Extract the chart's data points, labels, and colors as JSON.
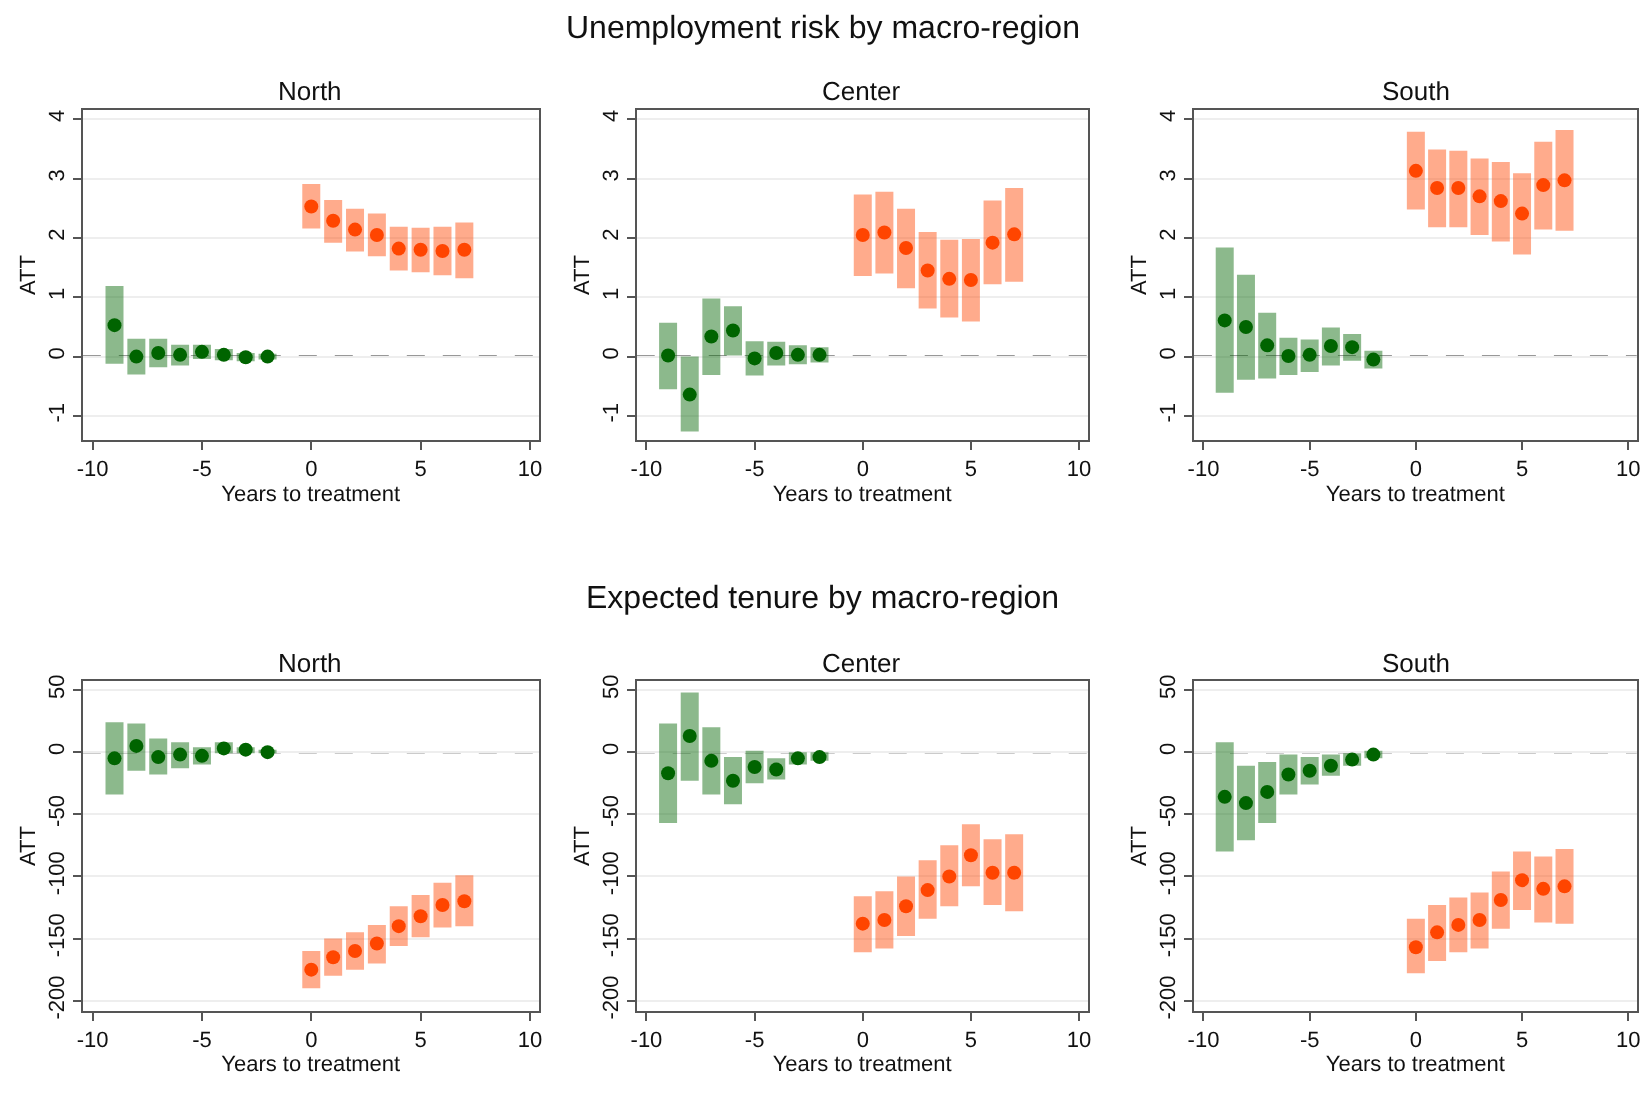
{
  "chart_data": [
    {
      "type": "scatter",
      "title": "North",
      "annotations": [
        "Unemployment risk by macro-region"
      ],
      "xlabel": "Years to treatment",
      "ylabel": "ATT",
      "xlim": [
        -10.45,
        10.4
      ],
      "xticks": [
        -10,
        -5,
        0,
        5,
        10
      ],
      "ylim": [
        -1.4,
        4.15
      ],
      "yticks": [
        -1,
        0,
        1,
        2,
        3,
        4
      ],
      "grid": "y",
      "marker": "circle",
      "ref_lines": [
        {
          "axis": "y",
          "value": 0,
          "line_style": "dashed",
          "color": "#333333"
        }
      ],
      "series": [
        {
          "color": "#006400",
          "x": [
            -9,
            -8,
            -7,
            -6,
            -5,
            -4,
            -3,
            -2
          ],
          "values": [
            0.53,
            0,
            0.06,
            0.03,
            0.08,
            0.03,
            -0.01,
            0
          ],
          "errors": [
            [
              -0.12,
              1.19
            ],
            [
              -0.3,
              0.3
            ],
            [
              -0.18,
              0.3
            ],
            [
              -0.15,
              0.2
            ],
            [
              -0.04,
              0.2
            ],
            [
              -0.06,
              0.13
            ],
            [
              -0.08,
              0.06
            ],
            [
              -0.05,
              0.05
            ]
          ]
        },
        {
          "color": "#ff4500",
          "x": [
            0,
            1,
            2,
            3,
            4,
            5,
            6,
            7
          ],
          "values": [
            2.53,
            2.29,
            2.14,
            2.05,
            1.82,
            1.8,
            1.78,
            1.8
          ],
          "errors": [
            [
              2.16,
              2.91
            ],
            [
              1.92,
              2.64
            ],
            [
              1.77,
              2.49
            ],
            [
              1.69,
              2.41
            ],
            [
              1.45,
              2.19
            ],
            [
              1.42,
              2.17
            ],
            [
              1.37,
              2.19
            ],
            [
              1.32,
              2.26
            ]
          ]
        }
      ]
    },
    {
      "type": "scatter",
      "title": "Center",
      "xlabel": "Years to treatment",
      "ylabel": "ATT",
      "xlim": [
        -10.45,
        10.4
      ],
      "xticks": [
        -10,
        -5,
        0,
        5,
        10
      ],
      "ylim": [
        -1.4,
        4.15
      ],
      "yticks": [
        -1,
        0,
        1,
        2,
        3,
        4
      ],
      "grid": "y",
      "marker": "circle",
      "ref_lines": [
        {
          "axis": "y",
          "value": 0,
          "line_style": "dashed",
          "color": "#333333"
        }
      ],
      "series": [
        {
          "color": "#006400",
          "x": [
            -9,
            -8,
            -7,
            -6,
            -5,
            -4,
            -3,
            -2
          ],
          "values": [
            0.02,
            -0.64,
            0.34,
            0.44,
            -0.03,
            0.06,
            0.03,
            0.03
          ],
          "errors": [
            [
              -0.55,
              0.57
            ],
            [
              -1.26,
              0
            ],
            [
              -0.31,
              0.98
            ],
            [
              0.02,
              0.85
            ],
            [
              -0.32,
              0.26
            ],
            [
              -0.15,
              0.25
            ],
            [
              -0.13,
              0.19
            ],
            [
              -0.1,
              0.16
            ]
          ]
        },
        {
          "color": "#ff4500",
          "x": [
            0,
            1,
            2,
            3,
            4,
            5,
            6,
            7
          ],
          "values": [
            2.05,
            2.09,
            1.83,
            1.45,
            1.31,
            1.29,
            1.92,
            2.06
          ],
          "errors": [
            [
              1.36,
              2.73
            ],
            [
              1.4,
              2.78
            ],
            [
              1.15,
              2.49
            ],
            [
              0.81,
              2.1
            ],
            [
              0.66,
              1.97
            ],
            [
              0.59,
              1.98
            ],
            [
              1.22,
              2.63
            ],
            [
              1.26,
              2.84
            ]
          ]
        }
      ]
    },
    {
      "type": "scatter",
      "title": "South",
      "xlabel": "Years to treatment",
      "ylabel": "ATT",
      "xlim": [
        -10.45,
        10.4
      ],
      "xticks": [
        -10,
        -5,
        0,
        5,
        10
      ],
      "ylim": [
        -1.4,
        4.15
      ],
      "yticks": [
        -1,
        0,
        1,
        2,
        3,
        4
      ],
      "grid": "y",
      "marker": "circle",
      "ref_lines": [
        {
          "axis": "y",
          "value": 0,
          "line_style": "dashed",
          "color": "#333333"
        }
      ],
      "series": [
        {
          "color": "#006400",
          "x": [
            -9,
            -8,
            -7,
            -6,
            -5,
            -4,
            -3,
            -2
          ],
          "values": [
            0.61,
            0.5,
            0.19,
            0.01,
            0.03,
            0.18,
            0.16,
            -0.05
          ],
          "errors": [
            [
              -0.61,
              1.84
            ],
            [
              -0.39,
              1.38
            ],
            [
              -0.37,
              0.74
            ],
            [
              -0.31,
              0.32
            ],
            [
              -0.26,
              0.29
            ],
            [
              -0.15,
              0.49
            ],
            [
              -0.07,
              0.38
            ],
            [
              -0.2,
              0.1
            ]
          ]
        },
        {
          "color": "#ff4500",
          "x": [
            0,
            1,
            2,
            3,
            4,
            5,
            6,
            7
          ],
          "values": [
            3.13,
            2.84,
            2.84,
            2.7,
            2.62,
            2.41,
            2.89,
            2.97
          ],
          "errors": [
            [
              2.48,
              3.79
            ],
            [
              2.18,
              3.49
            ],
            [
              2.18,
              3.47
            ],
            [
              2.05,
              3.34
            ],
            [
              1.94,
              3.28
            ],
            [
              1.72,
              3.09
            ],
            [
              2.14,
              3.62
            ],
            [
              2.12,
              3.82
            ]
          ]
        }
      ]
    },
    {
      "type": "scatter",
      "title": "North",
      "annotations": [
        "Expected tenure by macro-region"
      ],
      "xlabel": "Years to treatment",
      "ylabel": "ATT",
      "xlim": [
        -10.45,
        10.4
      ],
      "xticks": [
        -10,
        -5,
        0,
        5,
        10
      ],
      "ylim": [
        -208,
        57
      ],
      "yticks": [
        -200,
        -150,
        -100,
        -50,
        0,
        50
      ],
      "grid": "y",
      "marker": "circle",
      "ref_lines": [
        {
          "axis": "y",
          "value": 0,
          "line_style": "dashed",
          "color": "#333333"
        }
      ],
      "series": [
        {
          "color": "#006400",
          "x": [
            -9,
            -8,
            -7,
            -6,
            -5,
            -4,
            -3,
            -2
          ],
          "values": [
            -5,
            5,
            -4,
            -2,
            -3,
            3,
            2,
            0
          ],
          "errors": [
            [
              -34,
              24
            ],
            [
              -15,
              23
            ],
            [
              -18,
              11
            ],
            [
              -13,
              8
            ],
            [
              -10,
              4
            ],
            [
              -1,
              8
            ],
            [
              -1,
              4
            ],
            [
              -1,
              2
            ]
          ]
        },
        {
          "color": "#ff4500",
          "x": [
            0,
            1,
            2,
            3,
            4,
            5,
            6,
            7
          ],
          "values": [
            -175,
            -165,
            -160,
            -154,
            -140,
            -132,
            -123,
            -120
          ],
          "errors": [
            [
              -190,
              -160
            ],
            [
              -180,
              -150
            ],
            [
              -175,
              -145
            ],
            [
              -170,
              -139
            ],
            [
              -156,
              -124
            ],
            [
              -149,
              -115
            ],
            [
              -141,
              -105
            ],
            [
              -140,
              -99
            ]
          ]
        }
      ]
    },
    {
      "type": "scatter",
      "title": "Center",
      "xlabel": "Years to treatment",
      "ylabel": "ATT",
      "xlim": [
        -10.45,
        10.4
      ],
      "xticks": [
        -10,
        -5,
        0,
        5,
        10
      ],
      "ylim": [
        -208,
        57
      ],
      "yticks": [
        -200,
        -150,
        -100,
        -50,
        0,
        50
      ],
      "grid": "y",
      "marker": "circle",
      "ref_lines": [
        {
          "axis": "y",
          "value": 0,
          "line_style": "dashed",
          "color": "#333333"
        }
      ],
      "series": [
        {
          "color": "#006400",
          "x": [
            -9,
            -8,
            -7,
            -6,
            -5,
            -4,
            -3,
            -2
          ],
          "values": [
            -17,
            13,
            -7,
            -23,
            -12,
            -14,
            -5,
            -4
          ],
          "errors": [
            [
              -57,
              23
            ],
            [
              -23,
              48
            ],
            [
              -34,
              20
            ],
            [
              -42,
              -4
            ],
            [
              -25,
              1
            ],
            [
              -22,
              -5
            ],
            [
              -10,
              0
            ],
            [
              -7,
              0
            ]
          ]
        },
        {
          "color": "#ff4500",
          "x": [
            0,
            1,
            2,
            3,
            4,
            5,
            6,
            7
          ],
          "values": [
            -138,
            -135,
            -124,
            -111,
            -100,
            -83,
            -97,
            -97
          ],
          "errors": [
            [
              -161,
              -116
            ],
            [
              -158,
              -112
            ],
            [
              -148,
              -100
            ],
            [
              -134,
              -87
            ],
            [
              -124,
              -75
            ],
            [
              -108,
              -58
            ],
            [
              -123,
              -70
            ],
            [
              -128,
              -66
            ]
          ]
        }
      ]
    },
    {
      "type": "scatter",
      "title": "South",
      "xlabel": "Years to treatment",
      "ylabel": "ATT",
      "xlim": [
        -10.45,
        10.4
      ],
      "xticks": [
        -10,
        -5,
        0,
        5,
        10
      ],
      "ylim": [
        -208,
        57
      ],
      "yticks": [
        -200,
        -150,
        -100,
        -50,
        0,
        50
      ],
      "grid": "y",
      "marker": "circle",
      "ref_lines": [
        {
          "axis": "y",
          "value": 0,
          "line_style": "dashed",
          "color": "#333333"
        }
      ],
      "series": [
        {
          "color": "#006400",
          "x": [
            -9,
            -8,
            -7,
            -6,
            -5,
            -4,
            -3,
            -2
          ],
          "values": [
            -36,
            -41,
            -32,
            -18,
            -15,
            -11,
            -6,
            -2
          ],
          "errors": [
            [
              -80,
              8
            ],
            [
              -71,
              -11
            ],
            [
              -57,
              -8
            ],
            [
              -34,
              -2
            ],
            [
              -26,
              -4
            ],
            [
              -19,
              -2
            ],
            [
              -11,
              -1
            ],
            [
              -5,
              1
            ]
          ]
        },
        {
          "color": "#ff4500",
          "x": [
            0,
            1,
            2,
            3,
            4,
            5,
            6,
            7
          ],
          "values": [
            -157,
            -145,
            -139,
            -135,
            -119,
            -103,
            -110,
            -108
          ],
          "errors": [
            [
              -178,
              -134
            ],
            [
              -168,
              -123
            ],
            [
              -161,
              -117
            ],
            [
              -158,
              -113
            ],
            [
              -142,
              -96
            ],
            [
              -127,
              -80
            ],
            [
              -137,
              -84
            ],
            [
              -138,
              -78
            ]
          ]
        }
      ]
    }
  ]
}
